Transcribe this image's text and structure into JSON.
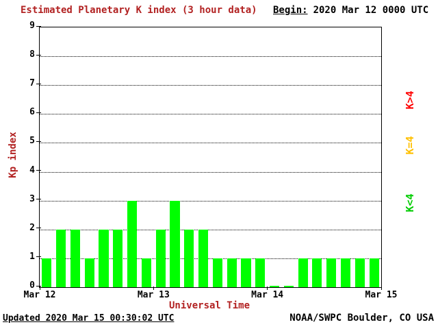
{
  "header": {
    "title": "Estimated Planetary K index (3 hour data)",
    "begin_label": "Begin:",
    "begin_value": "2020 Mar 12 0000 UTC"
  },
  "footer": {
    "updated": "Updated 2020 Mar 15 00:30:02 UTC",
    "source": "NOAA/SWPC Boulder, CO USA"
  },
  "legend": [
    {
      "label": "K>4",
      "color": "#ff0000"
    },
    {
      "label": "K=4",
      "color": "#ffc000"
    },
    {
      "label": "K<4",
      "color": "#00cc00"
    }
  ],
  "colors": {
    "bar": "#00ff00",
    "accent": "#b22222",
    "text": "#000000",
    "grid": "#000000",
    "background": "#ffffff"
  },
  "chart_data": {
    "type": "bar",
    "title": "Estimated Planetary K index (3 hour data)",
    "begin": "2020 Mar 12 0000 UTC",
    "xlabel": "Universal Time",
    "ylabel": "Kp index",
    "ylim": [
      0,
      9
    ],
    "yticks": [
      0,
      1,
      2,
      3,
      4,
      5,
      6,
      7,
      8,
      9
    ],
    "xticks": [
      "Mar 12",
      "Mar 13",
      "Mar 14",
      "Mar 15"
    ],
    "bar_interval_hours": 3,
    "grid": "dotted horizontal lines at each integer Kp level",
    "legend_position": "right, rotated 90deg",
    "values": [
      1,
      2,
      2,
      1,
      2,
      2,
      3,
      1,
      2,
      3,
      2,
      2,
      1,
      1,
      1,
      1,
      0,
      0,
      1,
      1,
      1,
      1,
      1,
      1
    ],
    "days": [
      {
        "date": "Mar 12",
        "kp": [
          1,
          2,
          2,
          1,
          2,
          2,
          3,
          1
        ]
      },
      {
        "date": "Mar 13",
        "kp": [
          2,
          3,
          2,
          2,
          1,
          1,
          1,
          1
        ]
      },
      {
        "date": "Mar 14",
        "kp": [
          0,
          0,
          1,
          1,
          1,
          1,
          1,
          1
        ]
      }
    ]
  }
}
